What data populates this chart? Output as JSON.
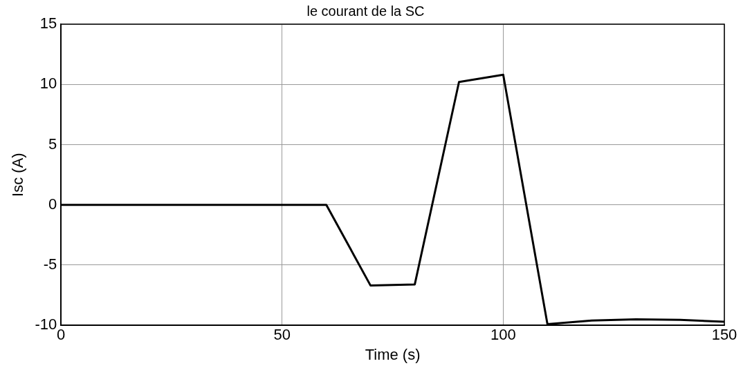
{
  "chart_data": {
    "type": "line",
    "title": "le courant de la SC",
    "xlabel": "Time (s)",
    "ylabel": "Isc (A)",
    "x": [
      0,
      60,
      70,
      80,
      90,
      100,
      110,
      120,
      130,
      140,
      150
    ],
    "series": [
      {
        "color": "#000000",
        "values": [
          0,
          0,
          -6.7,
          -6.6,
          10.2,
          10.8,
          -9.9,
          -9.6,
          -9.5,
          -9.55,
          -9.7
        ]
      }
    ],
    "xlim": [
      0,
      150
    ],
    "xticks": [
      0,
      50,
      100,
      150
    ],
    "ylim": [
      -10,
      15
    ],
    "yticks": [
      -10,
      -5,
      0,
      5,
      10,
      15
    ],
    "grid": true,
    "legend": false,
    "marker": "none",
    "line_style": "solid"
  }
}
